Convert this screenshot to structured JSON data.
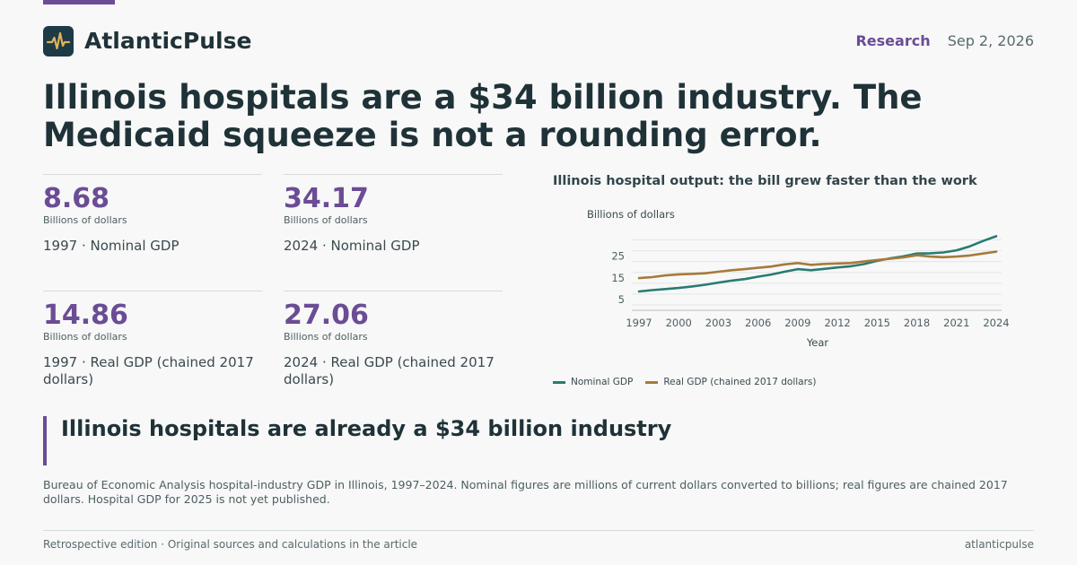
{
  "brand": {
    "name": "AtlanticPulse",
    "logo_icon": "pulse-waveform-icon",
    "accent": "#6b4c95",
    "logo_bg": "#1d3a46",
    "logo_stroke": "#e0b25a"
  },
  "header": {
    "section": "Research",
    "date": "Sep 2, 2026"
  },
  "headline": "Illinois hospitals are a $34 billion industry. The Medicaid squeeze is not a rounding error.",
  "stats": [
    {
      "value": "8.68",
      "unit": "Billions of dollars",
      "label": "1997 · Nominal GDP"
    },
    {
      "value": "34.17",
      "unit": "Billions of dollars",
      "label": "2024 · Nominal GDP"
    },
    {
      "value": "14.86",
      "unit": "Billions of dollars",
      "label": "1997 · Real GDP (chained 2017 dollars)"
    },
    {
      "value": "27.06",
      "unit": "Billions of dollars",
      "label": "2024 · Real GDP (chained 2017 dollars)"
    }
  ],
  "callout": "Illinois hospitals are already a $34 billion industry",
  "note": "Bureau of Economic Analysis hospital-industry GDP in Illinois, 1997–2024. Nominal figures are millions of current dollars converted to billions; real figures are chained 2017 dollars. Hospital GDP for 2025 is not yet published.",
  "footer": {
    "left": "Retrospective edition · Original sources and calculations in the article",
    "right": "atlanticpulse"
  },
  "chart_data": {
    "type": "line",
    "title": "Illinois hospital output: the bill grew faster than the work",
    "ylabel": "Billions of dollars",
    "xlabel": "Year",
    "x": [
      1997,
      1998,
      1999,
      2000,
      2001,
      2002,
      2003,
      2004,
      2005,
      2006,
      2007,
      2008,
      2009,
      2010,
      2011,
      2012,
      2013,
      2014,
      2015,
      2016,
      2017,
      2018,
      2019,
      2020,
      2021,
      2022,
      2023,
      2024
    ],
    "xticks": [
      1997,
      2000,
      2003,
      2006,
      2009,
      2012,
      2015,
      2018,
      2021,
      2024
    ],
    "yticks": [
      5,
      15,
      25
    ],
    "ylim": [
      0,
      36
    ],
    "grid": true,
    "legend_position": "bottom-left",
    "series": [
      {
        "name": "Nominal GDP",
        "color": "#2a7a72",
        "values": [
          8.68,
          9.3,
          9.8,
          10.3,
          11.0,
          11.8,
          12.8,
          13.7,
          14.4,
          15.5,
          16.5,
          17.8,
          19.0,
          18.5,
          19.1,
          19.8,
          20.3,
          21.3,
          22.8,
          24.0,
          24.9,
          26.2,
          26.3,
          26.7,
          27.7,
          29.5,
          32.0,
          34.17
        ]
      },
      {
        "name": "Real GDP (chained 2017 dollars)",
        "color": "#a8793a",
        "values": [
          14.86,
          15.3,
          16.1,
          16.6,
          16.8,
          17.1,
          17.8,
          18.5,
          19.0,
          19.6,
          20.2,
          21.2,
          21.8,
          21.0,
          21.4,
          21.6,
          21.8,
          22.5,
          23.2,
          23.8,
          24.4,
          25.4,
          24.8,
          24.5,
          24.8,
          25.3,
          26.2,
          27.06
        ]
      }
    ]
  }
}
